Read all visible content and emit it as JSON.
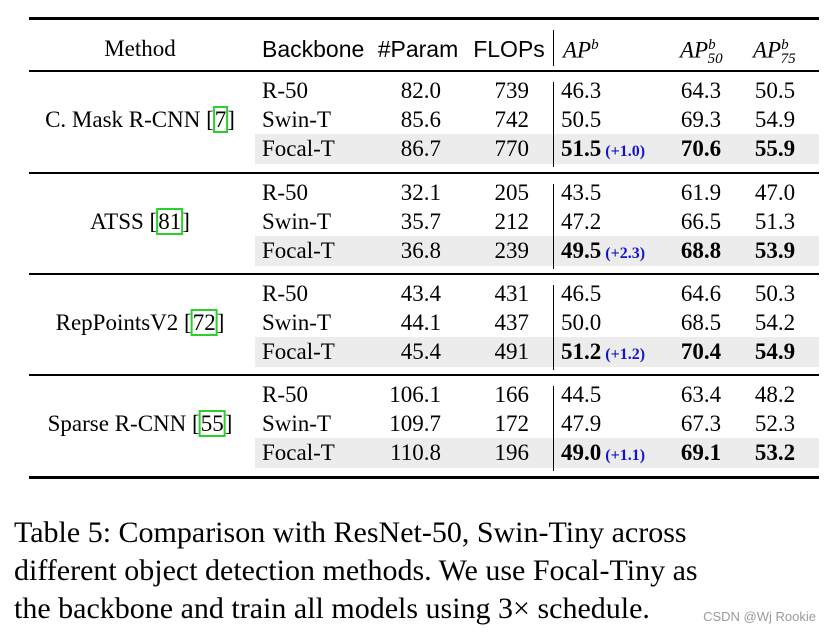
{
  "header": {
    "method": "Method",
    "backbone": "Backbone",
    "param": "#Param",
    "flops": "FLOPs",
    "ap_base": "AP",
    "ap_sup": "b",
    "ap50_base": "AP",
    "ap50_sup": "b",
    "ap50_sub": "50",
    "ap75_base": "AP",
    "ap75_sup": "b",
    "ap75_sub": "75"
  },
  "groups": [
    {
      "method": "C. Mask R-CNN [",
      "cite": "7",
      "close": "]",
      "rows": [
        {
          "backbone": "R-50",
          "param": "82.0",
          "flops": "739",
          "ap": "46.3",
          "gain": "",
          "ap50": "64.3",
          "ap75": "50.5"
        },
        {
          "backbone": "Swin-T",
          "param": "85.6",
          "flops": "742",
          "ap": "50.5",
          "gain": "",
          "ap50": "69.3",
          "ap75": "54.9"
        },
        {
          "backbone": "Focal-T",
          "param": "86.7",
          "flops": "770",
          "ap": "51.5",
          "gain": "(+1.0)",
          "ap50": "70.6",
          "ap75": "55.9"
        }
      ]
    },
    {
      "method": "ATSS [",
      "cite": "81",
      "close": "]",
      "rows": [
        {
          "backbone": "R-50",
          "param": "32.1",
          "flops": "205",
          "ap": "43.5",
          "gain": "",
          "ap50": "61.9",
          "ap75": "47.0"
        },
        {
          "backbone": "Swin-T",
          "param": "35.7",
          "flops": "212",
          "ap": "47.2",
          "gain": "",
          "ap50": "66.5",
          "ap75": "51.3"
        },
        {
          "backbone": "Focal-T",
          "param": "36.8",
          "flops": "239",
          "ap": "49.5",
          "gain": "(+2.3)",
          "ap50": "68.8",
          "ap75": "53.9"
        }
      ]
    },
    {
      "method": "RepPointsV2 [",
      "cite": "72",
      "close": "]",
      "rows": [
        {
          "backbone": "R-50",
          "param": "43.4",
          "flops": "431",
          "ap": "46.5",
          "gain": "",
          "ap50": "64.6",
          "ap75": "50.3"
        },
        {
          "backbone": "Swin-T",
          "param": "44.1",
          "flops": "437",
          "ap": "50.0",
          "gain": "",
          "ap50": "68.5",
          "ap75": "54.2"
        },
        {
          "backbone": "Focal-T",
          "param": "45.4",
          "flops": "491",
          "ap": "51.2",
          "gain": "(+1.2)",
          "ap50": "70.4",
          "ap75": "54.9"
        }
      ]
    },
    {
      "method": "Sparse R-CNN [",
      "cite": "55",
      "close": "]",
      "rows": [
        {
          "backbone": "R-50",
          "param": "106.1",
          "flops": "166",
          "ap": "44.5",
          "gain": "",
          "ap50": "63.4",
          "ap75": "48.2"
        },
        {
          "backbone": "Swin-T",
          "param": "109.7",
          "flops": "172",
          "ap": "47.9",
          "gain": "",
          "ap50": "67.3",
          "ap75": "52.3"
        },
        {
          "backbone": "Focal-T",
          "param": "110.8",
          "flops": "196",
          "ap": "49.0",
          "gain": "(+1.1)",
          "ap50": "69.1",
          "ap75": "53.2"
        }
      ]
    }
  ],
  "caption": {
    "line1": "Table 5: Comparison with ResNet-50, Swin-Tiny across",
    "line2": "different object detection methods. We use Focal-Tiny as",
    "line3": "the backbone and train all models using 3× schedule."
  },
  "watermark": "CSDN @Wj Rookie"
}
